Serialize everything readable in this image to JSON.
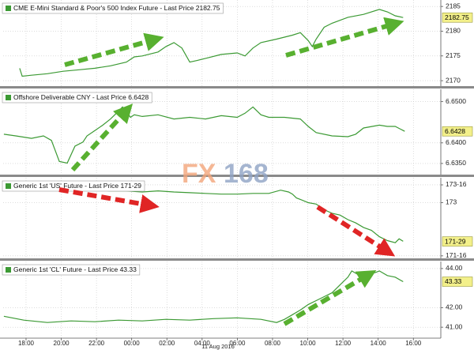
{
  "chart_data": [
    {
      "type": "line",
      "title": "CME E-Mini Standard & Poor's 500 Index Future - Last Price 2182.75",
      "x": [
        -0.36,
        -0.22,
        0.31,
        1.21,
        2.11,
        3.01,
        3.91,
        4.8,
        5.7,
        6.15,
        6.6,
        7.5,
        7.95,
        8.4,
        8.85,
        9.3,
        9.74,
        10.19,
        11.09,
        11.99,
        12.44,
        12.89,
        13.34,
        14.23,
        15.13,
        15.58,
        16.03,
        16.26,
        16.48,
        16.93,
        17.38,
        18.28,
        19.17,
        20.07,
        20.52,
        20.97,
        21.42
      ],
      "series": [
        {
          "name": "CME E-Mini Standard & Poor's 500 Index Future",
          "color": "#3c9a34",
          "values": [
            2172.5,
            2170.9,
            2171.1,
            2171.4,
            2171.9,
            2172.2,
            2172.5,
            2173.0,
            2173.75,
            2174.8,
            2175.0,
            2175.8,
            2176.9,
            2177.7,
            2176.6,
            2173.75,
            2174.1,
            2174.5,
            2175.3,
            2175.6,
            2175.0,
            2176.6,
            2177.7,
            2178.4,
            2179.2,
            2179.7,
            2178.1,
            2176.9,
            2178.4,
            2180.8,
            2181.6,
            2182.8,
            2183.4,
            2184.4,
            2183.9,
            2183.1,
            2182.75
          ]
        }
      ],
      "xlim": [
        -1.3,
        23.2
      ],
      "ylim": [
        2168.9,
        2186.3
      ],
      "yticks": [
        2170,
        2175,
        2180,
        2185
      ],
      "grid": true,
      "last_price": 2182.75
    },
    {
      "type": "line",
      "title": "Offshore Deliverable CNY - Last Price 6.6428",
      "x": [
        -1.26,
        -0.58,
        0.31,
        0.99,
        1.44,
        1.89,
        2.34,
        2.78,
        3.23,
        3.46,
        3.91,
        4.36,
        4.8,
        5.25,
        5.48,
        5.7,
        5.93,
        6.15,
        6.6,
        7.5,
        8.4,
        9.3,
        10.19,
        11.09,
        11.99,
        12.44,
        12.89,
        13.34,
        13.79,
        14.68,
        15.58,
        16.03,
        16.48,
        17.38,
        18.28,
        18.72,
        19.17,
        20.07,
        20.52,
        20.97,
        21.51
      ],
      "series": [
        {
          "name": "Offshore Deliverable CNY",
          "color": "#3c9a34",
          "values": [
            6.6421,
            6.6417,
            6.6411,
            6.6417,
            6.6406,
            6.6355,
            6.6351,
            6.6392,
            6.6402,
            6.6417,
            6.643,
            6.6443,
            6.6458,
            6.6477,
            6.6487,
            6.6477,
            6.6462,
            6.6468,
            6.6464,
            6.6468,
            6.6458,
            6.6462,
            6.6458,
            6.6466,
            6.6462,
            6.6472,
            6.6487,
            6.6468,
            6.6462,
            6.6462,
            6.6458,
            6.644,
            6.6425,
            6.6417,
            6.6415,
            6.6421,
            6.6436,
            6.6443,
            6.644,
            6.644,
            6.6428
          ]
        }
      ],
      "xlim": [
        -1.3,
        23.2
      ],
      "ylim": [
        6.6323,
        6.653
      ],
      "yticks": [
        {
          "value": 6.635,
          "label": "6.6350"
        },
        {
          "value": 6.64,
          "label": "6.6400"
        },
        {
          "value": 6.65,
          "label": "6.6500"
        }
      ],
      "grid": true,
      "last_price": 6.6428
    },
    {
      "type": "line",
      "title": "Generic 1st 'US' Future - Last Price 171-29",
      "x": [
        -0.58,
        0.31,
        1.21,
        2.11,
        3.01,
        3.91,
        4.8,
        5.7,
        6.6,
        7.5,
        8.4,
        9.3,
        10.19,
        11.09,
        11.99,
        12.89,
        13.79,
        14.46,
        14.91,
        15.13,
        15.36,
        15.58,
        16.03,
        16.48,
        16.93,
        17.38,
        17.83,
        18.28,
        18.72,
        19.17,
        19.62,
        20.07,
        20.52,
        20.97,
        21.19,
        21.42
      ],
      "series": [
        {
          "name": "Generic 1st 'US' Future",
          "color": "#3c9a34",
          "values": [
            173.43,
            173.43,
            173.41,
            173.39,
            173.37,
            173.35,
            173.33,
            173.33,
            173.3,
            173.33,
            173.3,
            173.28,
            173.26,
            173.24,
            173.24,
            173.26,
            173.26,
            173.35,
            173.3,
            173.24,
            173.13,
            173.09,
            173.0,
            172.96,
            172.8,
            172.7,
            172.65,
            172.52,
            172.43,
            172.3,
            172.22,
            172.04,
            171.93,
            171.87,
            171.98,
            171.91
          ]
        }
      ],
      "xlim": [
        -1.3,
        23.2
      ],
      "ylim": [
        171.43,
        173.7
      ],
      "yticks": [
        {
          "value": 171.5,
          "label": "171-16"
        },
        173,
        {
          "value": 173.5,
          "label": "173-16"
        }
      ],
      "grid": true,
      "last_price": {
        "value": 171.90625,
        "label": "171-29"
      }
    },
    {
      "type": "line",
      "title": "Generic 1st 'CL' Future - Last Price 43.33",
      "x": [
        -1.26,
        -0.13,
        1.21,
        2.56,
        3.91,
        5.25,
        6.6,
        7.95,
        9.3,
        10.64,
        11.99,
        13.34,
        14.23,
        14.68,
        15.13,
        15.58,
        16.03,
        16.48,
        16.93,
        17.38,
        17.83,
        18.28,
        18.5,
        18.95,
        19.4,
        19.85,
        20.07,
        20.52,
        20.97,
        21.42
      ],
      "series": [
        {
          "name": "Generic 1st 'CL' Future",
          "color": "#3c9a34",
          "values": [
            41.56,
            41.36,
            41.24,
            41.32,
            41.28,
            41.36,
            41.32,
            41.4,
            41.36,
            41.44,
            41.48,
            41.4,
            41.24,
            41.4,
            41.64,
            41.88,
            42.16,
            42.36,
            42.56,
            42.76,
            43.16,
            43.56,
            43.88,
            43.64,
            43.72,
            43.8,
            43.88,
            43.64,
            43.56,
            43.33
          ]
        }
      ],
      "xlim": [
        -1.3,
        23.2
      ],
      "ylim": [
        40.44,
        44.36
      ],
      "yticks": [
        {
          "value": 41,
          "label": "41.00"
        },
        {
          "value": 42,
          "label": "42.00"
        },
        {
          "value": 44,
          "label": "44.00"
        }
      ],
      "grid": true,
      "last_price": 43.33,
      "xticks": [
        {
          "value": 0,
          "label": "18:00"
        },
        {
          "value": 2,
          "label": "20:00"
        },
        {
          "value": 4,
          "label": "22:00"
        },
        {
          "value": 6,
          "label": "00:00"
        },
        {
          "value": 8,
          "label": "02:00"
        },
        {
          "value": 10,
          "label": "04:00"
        },
        {
          "value": 12,
          "label": "06:00"
        },
        {
          "value": 14,
          "label": "08:00"
        },
        {
          "value": 16,
          "label": "10:00"
        },
        {
          "value": 18,
          "label": "12:00"
        },
        {
          "value": 20,
          "label": "14:00"
        },
        {
          "value": 22,
          "label": "16:00"
        }
      ],
      "xlabel": "11 Aug 2016"
    }
  ],
  "watermark": {
    "left": "FX",
    "right": "168"
  }
}
